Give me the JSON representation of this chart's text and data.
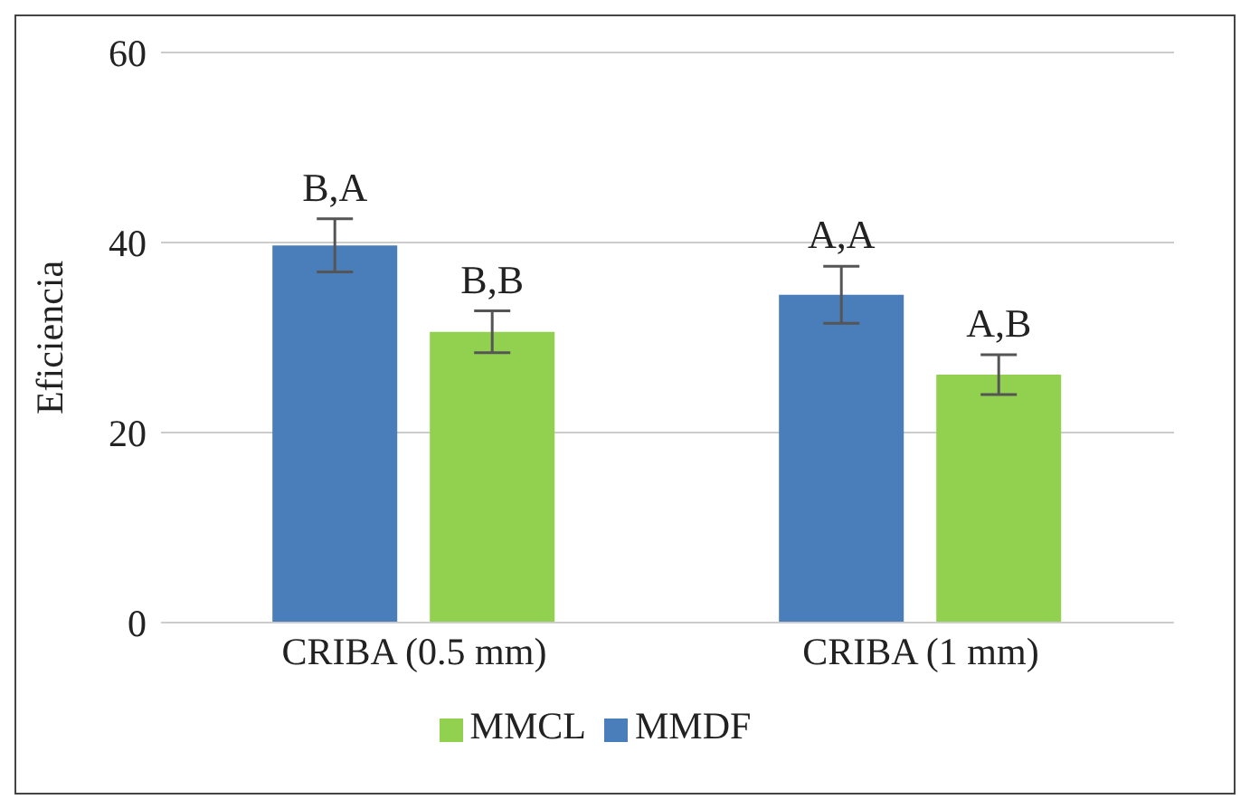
{
  "chart_data": {
    "type": "bar",
    "ylabel": "Eficiencia",
    "categories": [
      "CRIBA (0.5 mm)",
      "CRIBA (1 mm)"
    ],
    "series": [
      {
        "name": "MMDF",
        "color": "#4a7ebb",
        "values": [
          39.7,
          34.5
        ],
        "errors": [
          2.8,
          3
        ]
      },
      {
        "name": "MMCL",
        "color": "#92d050",
        "values": [
          30.6,
          26.1
        ],
        "errors": [
          2.2,
          2.1
        ]
      }
    ],
    "ylim": [
      0,
      60
    ],
    "yticks": [
      0,
      20,
      40,
      60
    ],
    "grid": "y",
    "legend": "bottom",
    "annotations": [
      "B,A",
      "B,B",
      "A,A",
      "A,B"
    ]
  }
}
